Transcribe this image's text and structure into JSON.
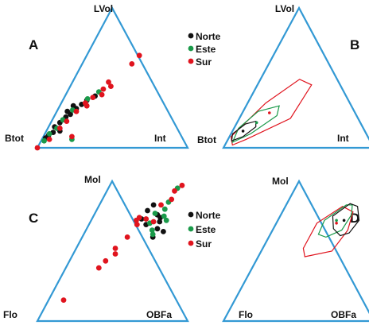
{
  "figure": {
    "colors": {
      "triangle": "#3399d4",
      "Norte": "#111111",
      "Este": "#1a9a4a",
      "Sur": "#e0141e"
    },
    "legend_panels": [
      "A",
      "C"
    ],
    "legend": [
      {
        "name": "Norte",
        "color": "#111111"
      },
      {
        "name": "Este",
        "color": "#1a9a4a"
      },
      {
        "name": "Sur",
        "color": "#e0141e"
      }
    ]
  },
  "chart_data": [
    {
      "panel": "A",
      "type": "scatter",
      "ternary": true,
      "vertices": {
        "top": "LVol",
        "left": "Btot",
        "right": "Int"
      },
      "series": [
        {
          "name": "Norte",
          "color": "#111111",
          "points": [
            [
              0.07,
              0.02
            ],
            [
              0.09,
              0.03
            ],
            [
              0.11,
              0.05
            ],
            [
              0.15,
              0.04
            ],
            [
              0.18,
              0.06
            ],
            [
              0.22,
              0.08
            ],
            [
              0.24,
              0.1
            ],
            [
              0.28,
              0.12
            ],
            [
              0.31,
              0.14
            ],
            [
              0.34,
              0.16
            ],
            [
              0.37,
              0.2
            ],
            [
              0.26,
              0.07
            ],
            [
              0.12,
              0.09
            ],
            [
              0.3,
              0.09
            ]
          ]
        },
        {
          "name": "Este",
          "color": "#1a9a4a",
          "points": [
            [
              0.05,
              0.02
            ],
            [
              0.1,
              0.03
            ],
            [
              0.14,
              0.06
            ],
            [
              0.2,
              0.07
            ],
            [
              0.27,
              0.1
            ],
            [
              0.35,
              0.16
            ],
            [
              0.4,
              0.21
            ],
            [
              0.06,
              0.2
            ]
          ]
        },
        {
          "name": "Sur",
          "color": "#e0141e",
          "points": [
            [
              0.0,
              0.0
            ],
            [
              0.06,
              0.05
            ],
            [
              0.14,
              0.08
            ],
            [
              0.19,
              0.1
            ],
            [
              0.26,
              0.13
            ],
            [
              0.3,
              0.18
            ],
            [
              0.32,
              0.16
            ],
            [
              0.36,
              0.19
            ],
            [
              0.38,
              0.24
            ],
            [
              0.42,
              0.23
            ],
            [
              0.44,
              0.27
            ],
            [
              0.47,
              0.24
            ],
            [
              0.6,
              0.33
            ],
            [
              0.66,
              0.35
            ],
            [
              0.08,
              0.19
            ]
          ]
        }
      ]
    },
    {
      "panel": "B",
      "type": "scatter",
      "ternary": true,
      "vertices": {
        "top": "LVol",
        "left": "Btot",
        "right": "Int"
      },
      "fields": [
        {
          "name": "Sur",
          "color": "#e0141e",
          "polygon": [
            [
              0.02,
              0.05
            ],
            [
              0.06,
              0.12
            ],
            [
              0.21,
              0.34
            ],
            [
              0.45,
              0.36
            ],
            [
              0.49,
              0.26
            ],
            [
              0.32,
              0.12
            ],
            [
              0.08,
              0.01
            ]
          ]
        },
        {
          "name": "Este",
          "color": "#1a9a4a",
          "polygon": [
            [
              0.04,
              0.04
            ],
            [
              0.1,
              0.13
            ],
            [
              0.23,
              0.24
            ],
            [
              0.3,
              0.22
            ],
            [
              0.26,
              0.1
            ],
            [
              0.14,
              0.03
            ]
          ]
        },
        {
          "name": "Norte",
          "color": "#111111",
          "polygon": [
            [
              0.05,
              0.03
            ],
            [
              0.08,
              0.09
            ],
            [
              0.15,
              0.14
            ],
            [
              0.19,
              0.12
            ],
            [
              0.17,
              0.06
            ],
            [
              0.1,
              0.01
            ]
          ]
        }
      ],
      "means": [
        {
          "name": "Sur",
          "color": "#e0141e",
          "point": [
            0.25,
            0.18
          ]
        },
        {
          "name": "Este",
          "color": "#1a9a4a",
          "point": [
            0.18,
            0.13
          ]
        },
        {
          "name": "Norte",
          "color": "#111111",
          "point": [
            0.12,
            0.07
          ]
        }
      ]
    },
    {
      "panel": "C",
      "type": "scatter",
      "ternary": true,
      "vertices": {
        "top": "Mol",
        "left": "Flo",
        "right": "OBFa"
      },
      "series": [
        {
          "name": "Norte",
          "color": "#111111",
          "points": [
            [
              0.83,
              0.36
            ],
            [
              0.79,
              0.34
            ],
            [
              0.76,
              0.42
            ],
            [
              0.73,
              0.33
            ],
            [
              0.74,
              0.45
            ],
            [
              0.71,
              0.46
            ],
            [
              0.69,
              0.38
            ],
            [
              0.66,
              0.47
            ],
            [
              0.6,
              0.47
            ],
            [
              0.64,
              0.52
            ]
          ]
        },
        {
          "name": "Este",
          "color": "#1a9a4a",
          "points": [
            [
              0.95,
              0.46
            ],
            [
              0.85,
              0.45
            ],
            [
              0.8,
              0.45
            ],
            [
              0.77,
              0.4
            ],
            [
              0.75,
              0.47
            ],
            [
              0.72,
              0.5
            ],
            [
              0.7,
              0.4
            ],
            [
              0.65,
              0.44
            ],
            [
              0.62,
              0.46
            ]
          ]
        },
        {
          "name": "Sur",
          "color": "#e0141e",
          "points": [
            [
              0.97,
              0.48
            ],
            [
              0.93,
              0.45
            ],
            [
              0.87,
              0.46
            ],
            [
              0.83,
              0.41
            ],
            [
              0.74,
              0.31
            ],
            [
              0.72,
              0.3
            ],
            [
              0.73,
              0.36
            ],
            [
              0.71,
              0.42
            ],
            [
              0.69,
              0.32
            ],
            [
              0.6,
              0.3
            ],
            [
              0.52,
              0.26
            ],
            [
              0.48,
              0.28
            ],
            [
              0.43,
              0.24
            ],
            [
              0.38,
              0.22
            ],
            [
              0.15,
              0.1
            ]
          ]
        }
      ]
    },
    {
      "panel": "D",
      "type": "scatter",
      "ternary": true,
      "vertices": {
        "top": "Mol",
        "left": "Flo",
        "right": "OBFa"
      },
      "fields": [
        {
          "name": "Sur",
          "color": "#e0141e",
          "polygon": [
            [
              0.82,
              0.38
            ],
            [
              0.7,
              0.27
            ],
            [
              0.52,
              0.27
            ],
            [
              0.46,
              0.31
            ],
            [
              0.5,
              0.47
            ],
            [
              0.65,
              0.5
            ],
            [
              0.78,
              0.47
            ]
          ]
        },
        {
          "name": "Este",
          "color": "#1a9a4a",
          "polygon": [
            [
              0.83,
              0.4
            ],
            [
              0.72,
              0.31
            ],
            [
              0.62,
              0.32
            ],
            [
              0.6,
              0.38
            ],
            [
              0.65,
              0.46
            ],
            [
              0.76,
              0.47
            ],
            [
              0.83,
              0.44
            ]
          ]
        },
        {
          "name": "Norte",
          "color": "#111111",
          "polygon": [
            [
              0.84,
              0.42
            ],
            [
              0.75,
              0.35
            ],
            [
              0.66,
              0.4
            ],
            [
              0.61,
              0.47
            ],
            [
              0.63,
              0.52
            ],
            [
              0.72,
              0.54
            ],
            [
              0.82,
              0.48
            ]
          ]
        }
      ],
      "means": [
        {
          "name": "Sur",
          "color": "#e0141e",
          "point": [
            0.7,
            0.4
          ]
        },
        {
          "name": "Este",
          "color": "#1a9a4a",
          "point": [
            0.72,
            0.39
          ]
        },
        {
          "name": "Norte",
          "color": "#111111",
          "point": [
            0.72,
            0.44
          ]
        }
      ]
    }
  ]
}
